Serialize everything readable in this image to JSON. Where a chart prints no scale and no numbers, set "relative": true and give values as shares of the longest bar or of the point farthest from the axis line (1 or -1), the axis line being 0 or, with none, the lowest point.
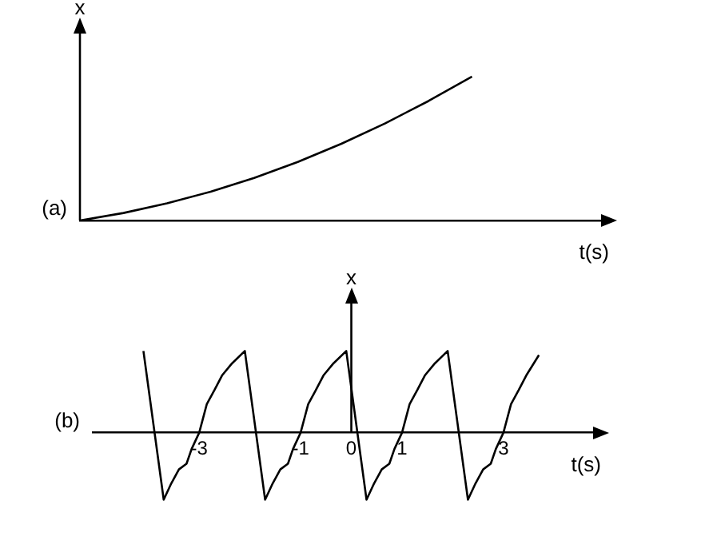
{
  "chart_data": [
    {
      "type": "line",
      "relative": true,
      "categories": [
        null,
        null,
        null,
        null,
        null,
        null,
        null,
        null,
        null,
        null,
        null,
        null,
        null
      ],
      "values": [
        0,
        0.052,
        0.119,
        0.2,
        0.296,
        0.407,
        0.533,
        0.674,
        0.83,
        1,
        null,
        null,
        null
      ],
      "color": "#000000",
      "marker": "none",
      "xlabel": "t(s)",
      "ylabel": "x",
      "annotations": [
        "(a)"
      ]
    },
    {
      "type": "line",
      "relative": true,
      "x": [
        -4.1,
        -3.7,
        -3.55,
        -3.4,
        -3.25,
        -3.15,
        -3.0,
        -2.85,
        -2.7,
        -2.55,
        -2.35,
        -2.1,
        -1.7,
        -1.55,
        -1.4,
        -1.25,
        -1.15,
        -1.0,
        -0.85,
        -0.7,
        -0.55,
        -0.35,
        -0.1,
        0.3,
        0.45,
        0.6,
        0.75,
        0.85,
        1.0,
        1.15,
        1.3,
        1.45,
        1.65,
        1.9,
        2.3,
        2.45,
        2.6,
        2.75,
        2.85,
        3.0,
        3.15,
        3.3,
        3.45,
        3.7
      ],
      "values": [
        1,
        -0.82,
        -0.62,
        -0.45,
        -0.38,
        -0.2,
        0,
        0.35,
        0.52,
        0.7,
        0.85,
        1,
        -0.82,
        -0.62,
        -0.45,
        -0.38,
        -0.2,
        0,
        0.35,
        0.52,
        0.7,
        0.85,
        1,
        -0.82,
        -0.62,
        -0.45,
        -0.38,
        -0.2,
        0,
        0.35,
        0.52,
        0.7,
        0.85,
        1,
        -0.82,
        -0.62,
        -0.45,
        -0.38,
        -0.2,
        0,
        0.35,
        0.52,
        0.7,
        0.95
      ],
      "color": "#000000",
      "marker": "none",
      "xlim": [
        -5.1,
        4.8
      ],
      "xticks": [
        -3,
        -1,
        0,
        1,
        3
      ],
      "xlabel": "t(s)",
      "ylabel": "x",
      "annotations": [
        "(b)"
      ]
    }
  ]
}
